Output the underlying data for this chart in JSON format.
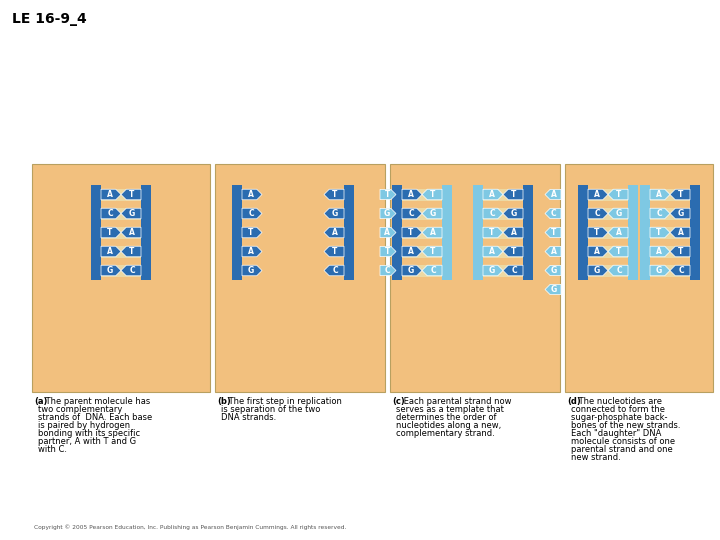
{
  "title": "LE 16-9_4",
  "bg_color": "#F2C07E",
  "outer_bg": "#FFFFFF",
  "blue_dark": "#2B6CB0",
  "blue_light": "#7EC8E3",
  "tan_rung": "#EDD9A3",
  "text_color": "#000000",
  "caption_a_bold": "(a)",
  "caption_a_rest": " The parent molecule has\n     two complementary\n     strands of  DNA. Each base\n     is paired by hydrogen\n     bonding with its specific\n     partner, A with T and G\n     with C.",
  "caption_b_bold": "(b)",
  "caption_b_rest": " The first step in replication\n     is separation of the two\n     DNA strands.",
  "caption_c_bold": "(c)",
  "caption_c_rest": " Each parental strand now\n     serves as a template that\n     determines the order of\n     nucleotides along a new,\n     complementary strand.",
  "caption_d_bold": "(d)",
  "caption_d_rest": " The nucleotides are\n     connected to form the\n     sugar-phosphate back-\n     bones of the new strands.\n     Each \"daughter\" DNA\n     molecule consists of one\n     parental strand and one\n     new strand.",
  "copyright": "Copyright © 2005 Pearson Education, Inc. Publishing as Pearson Benjamin Cummings. All rights reserved.",
  "bases_a": [
    [
      "A",
      "T"
    ],
    [
      "C",
      "G"
    ],
    [
      "T",
      "A"
    ],
    [
      "A",
      "T"
    ],
    [
      "G",
      "C"
    ]
  ],
  "bases_b_left": [
    "A",
    "C",
    "T",
    "A",
    "G"
  ],
  "bases_b_right": [
    "T",
    "G",
    "A",
    "T",
    "C"
  ],
  "bases_c_free_left": [
    "T",
    "G",
    "A",
    "T",
    "C",
    "G"
  ],
  "bases_c_free_right": [
    "A",
    "C",
    "T",
    "A",
    "G"
  ]
}
